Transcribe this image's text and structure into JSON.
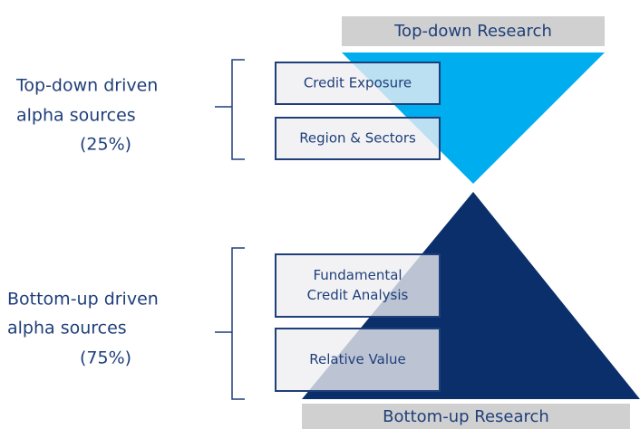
{
  "top": {
    "banner": "Top-down Research",
    "label": [
      "Top-down driven",
      "alpha sources",
      "(25%)"
    ],
    "boxes": [
      [
        "Credit Exposure"
      ],
      [
        "Region & Sectors"
      ]
    ]
  },
  "bottom": {
    "banner": "Bottom-up Research",
    "label": [
      "Bottom-up driven",
      "alpha sources",
      "(75%)"
    ],
    "boxes": [
      [
        "Fundamental",
        "Credit Analysis"
      ],
      [
        "Relative Value"
      ]
    ]
  }
}
